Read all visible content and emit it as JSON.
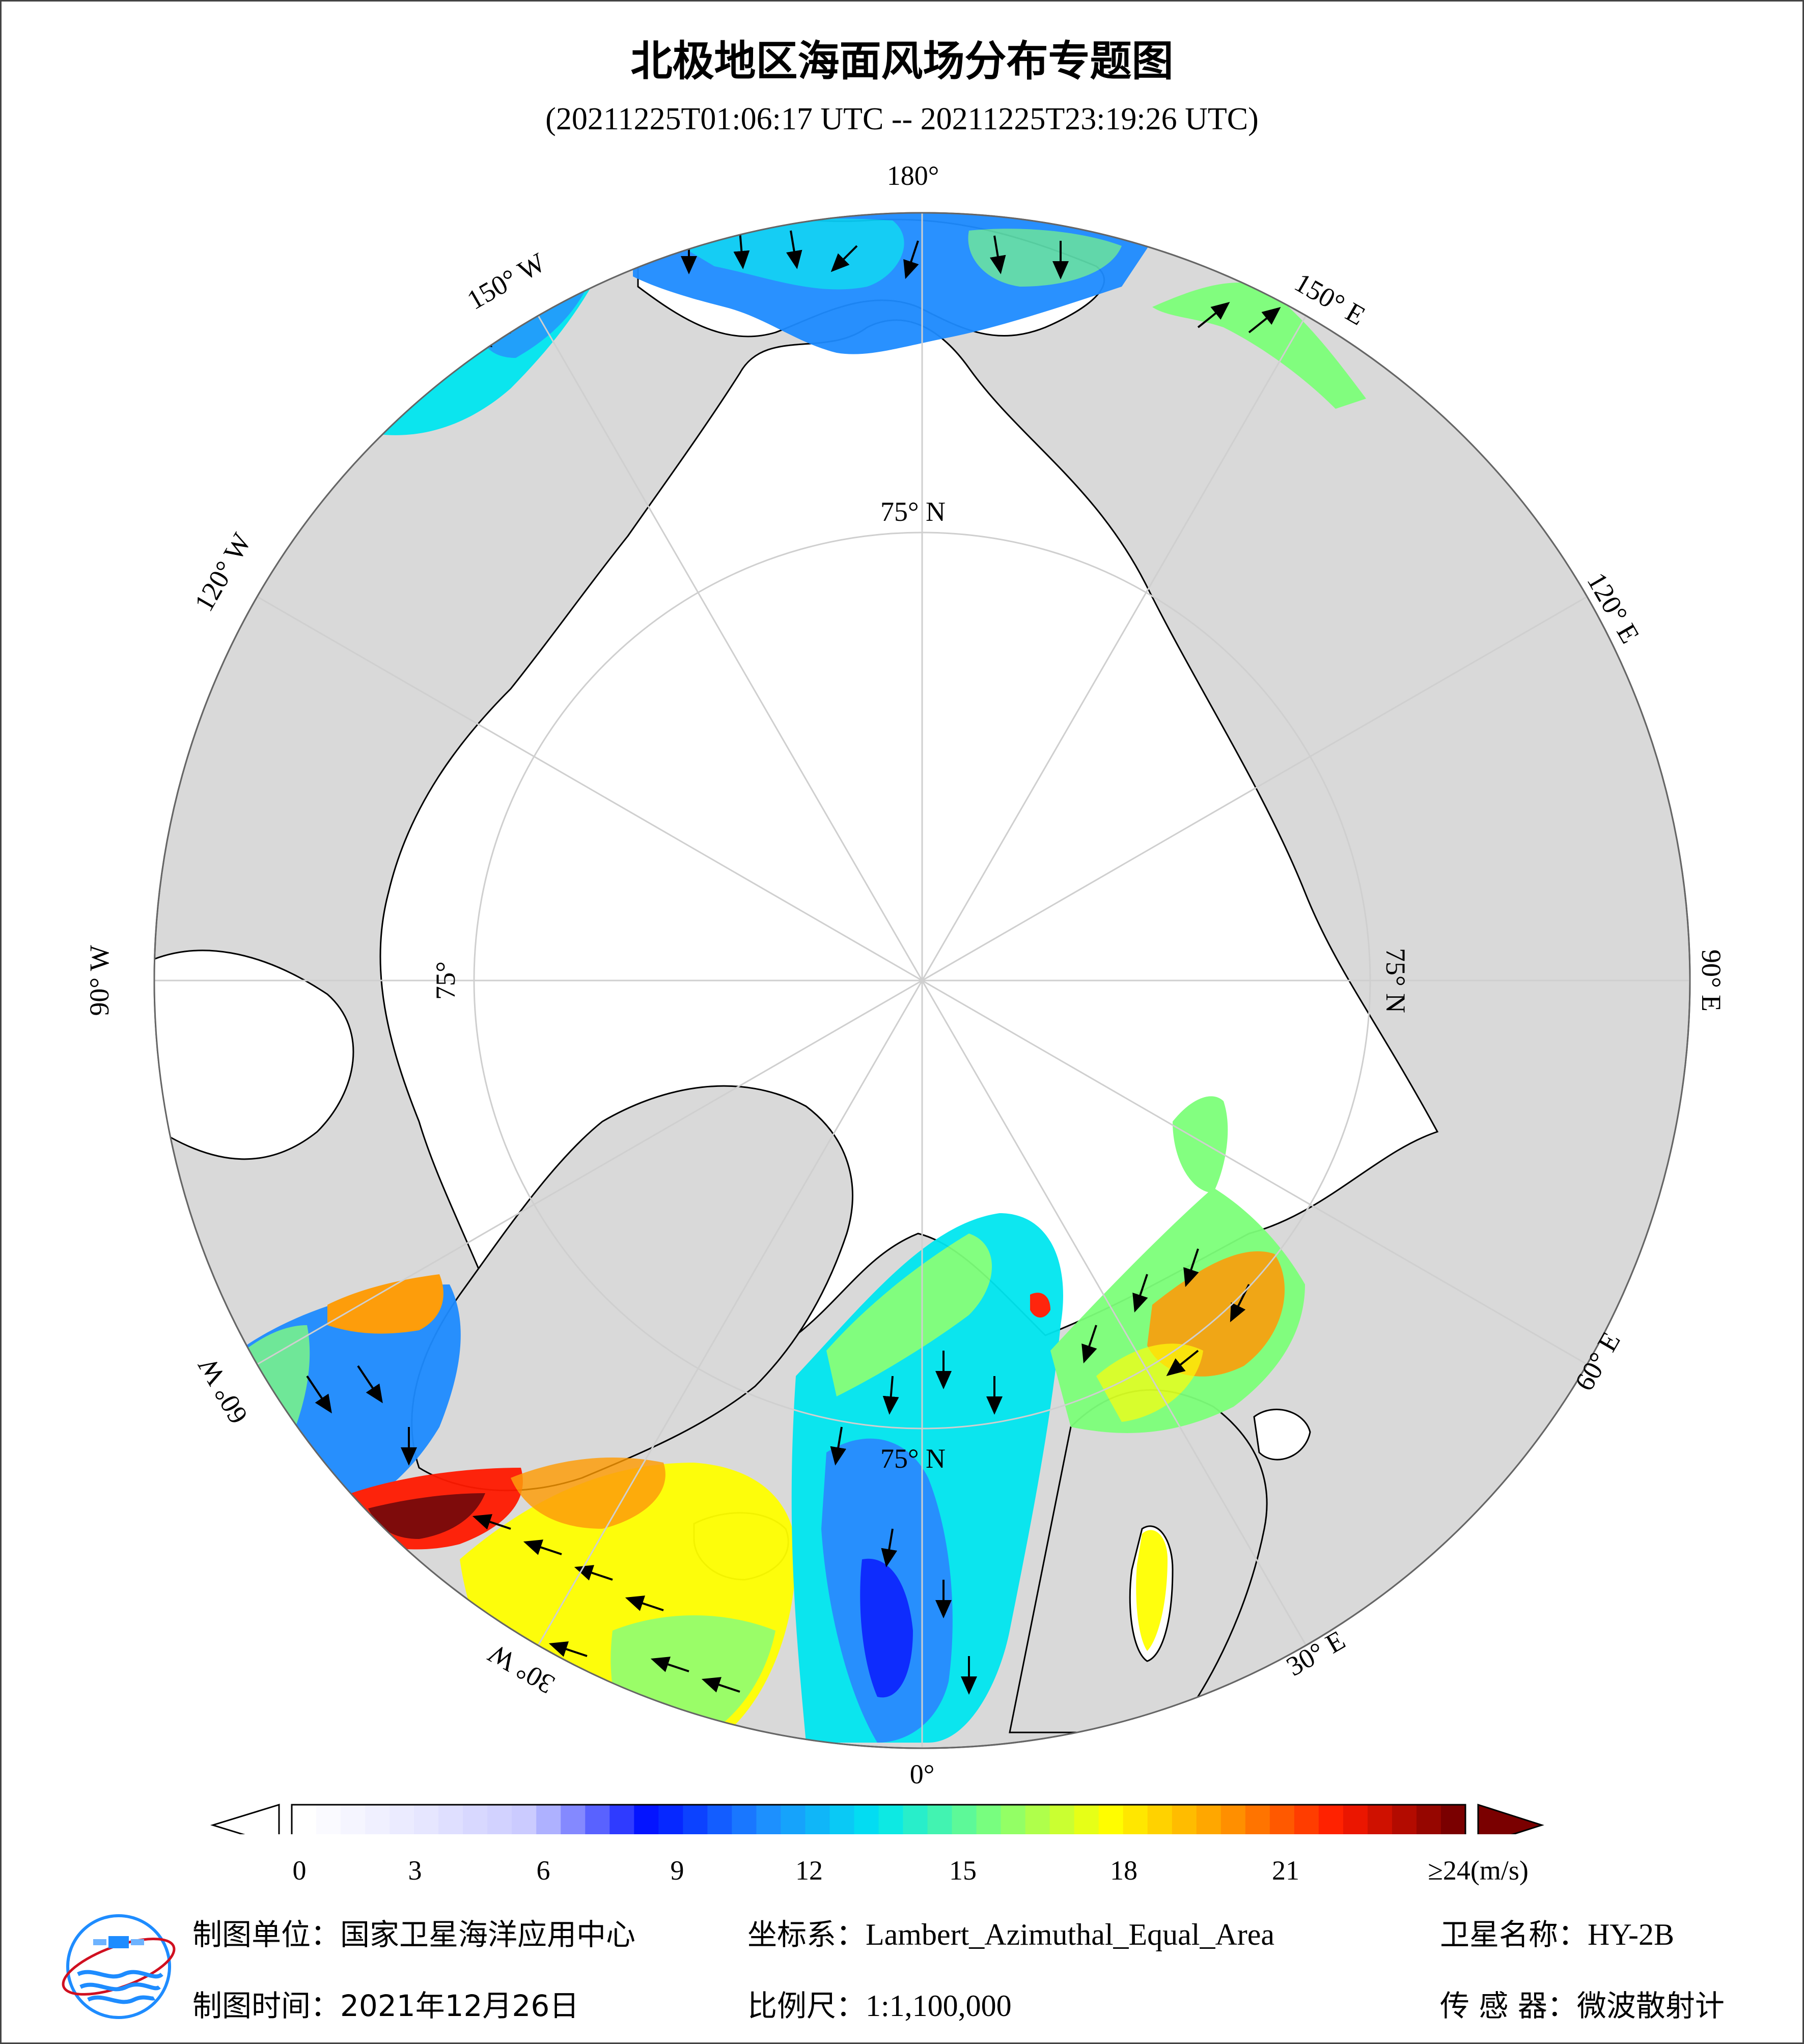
{
  "header": {
    "title": "北极地区海面风场分布专题图",
    "time_range": "(20211225T01:06:17 UTC -- 20211225T23:19:26 UTC)"
  },
  "map": {
    "projection": "Lambert_Azimuthal_Equal_Area",
    "center": "North Pole",
    "longitude_labels": [
      {
        "text": "180°",
        "lon": 180
      },
      {
        "text": "150° E",
        "lon": 150
      },
      {
        "text": "120° E",
        "lon": 120
      },
      {
        "text": "90° E",
        "lon": 90
      },
      {
        "text": "60° E",
        "lon": 60
      },
      {
        "text": "30° E",
        "lon": 30
      },
      {
        "text": "0°",
        "lon": 0
      },
      {
        "text": "30° W",
        "lon": -30
      },
      {
        "text": "60° W",
        "lon": -60
      },
      {
        "text": "90° W",
        "lon": -90
      },
      {
        "text": "120° W",
        "lon": -120
      },
      {
        "text": "150° W",
        "lon": -150
      }
    ],
    "latitude_labels": [
      {
        "text": "75° N",
        "lon": 180
      },
      {
        "text": "75° N",
        "lon": 90
      },
      {
        "text": "75° N",
        "lon": 0
      },
      {
        "text": "75°",
        "lon": -90
      }
    ],
    "colors": {
      "ocean": "#ffffff",
      "land": "#d9d9d9",
      "coast": "#000000",
      "grid": "#cfcfcf"
    }
  },
  "colorbar": {
    "unit": "(m/s)",
    "ticks": [
      "0",
      "3",
      "6",
      "9",
      "12",
      "15",
      "18",
      "21"
    ],
    "tick_values": [
      0,
      3,
      6,
      9,
      12,
      15,
      18,
      21
    ],
    "max_label": "≥24(m/s)",
    "min": 0,
    "max": 24,
    "colors": [
      "#ffffff",
      "#e8e8ff",
      "#c8c8ff",
      "#0010ff",
      "#1e8cff",
      "#00e6f0",
      "#7dff7a",
      "#ffff00",
      "#ff9a00",
      "#ff1a00",
      "#7a0000"
    ]
  },
  "footer": {
    "org_label": "制图单位：",
    "org_value": "国家卫星海洋应用中心",
    "crs_label": "坐标系：",
    "crs_value": "Lambert_Azimuthal_Equal_Area",
    "sat_label": "卫星名称：",
    "sat_value": "HY-2B",
    "date_label": "制图时间：",
    "date_value": "2021年12月26日",
    "scale_label": "比例尺：",
    "scale_value": "1:1,100,000",
    "sensor_label": "传 感 器：",
    "sensor_value": "微波散射计"
  }
}
